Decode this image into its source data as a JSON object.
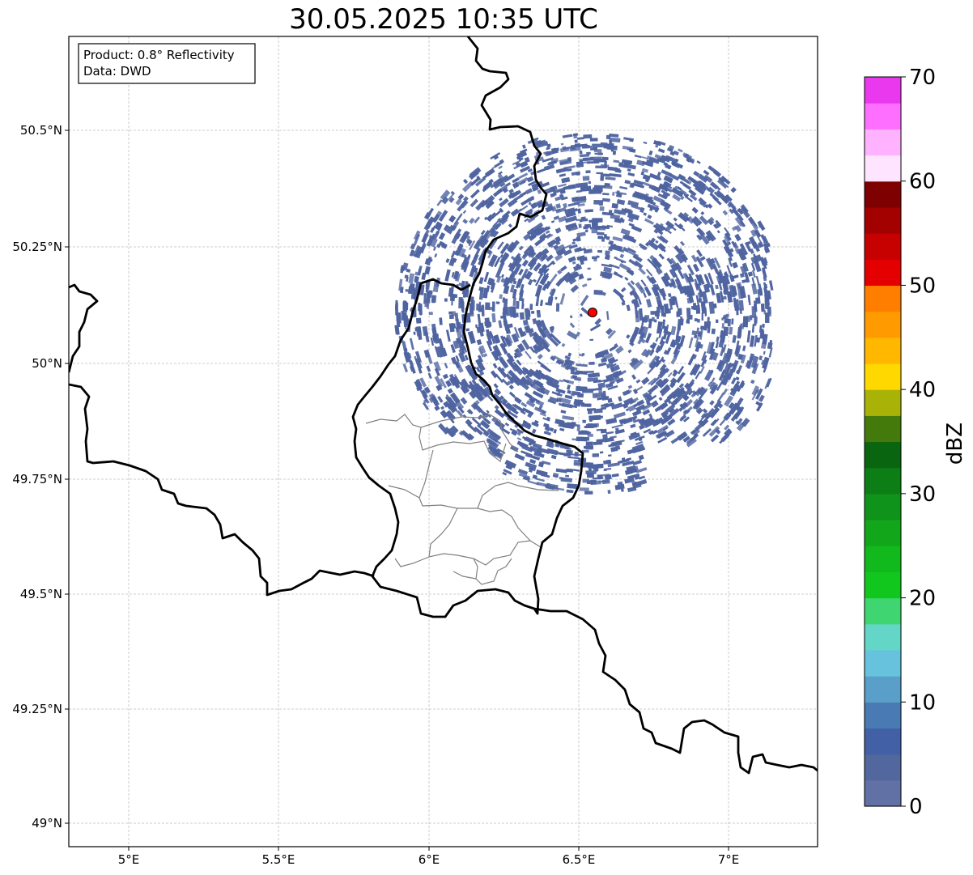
{
  "title": "30.05.2025 10:35 UTC",
  "info_box": {
    "product": "Product: 0.8° Reflectivity",
    "data_source": "Data: DWD"
  },
  "axes": {
    "lon_ticks": [
      "5°E",
      "5.5°E",
      "6°E",
      "6.5°E",
      "7°E"
    ],
    "lat_ticks": [
      "50.5°N",
      "50.25°N",
      "50°N",
      "49.75°N",
      "49.5°N",
      "49.25°N",
      "49°N"
    ]
  },
  "colorbar": {
    "label": "dBZ",
    "ticks": [
      "0",
      "10",
      "20",
      "30",
      "40",
      "50",
      "60",
      "70"
    ],
    "colors": [
      "#6170a5",
      "#53679f",
      "#4160a5",
      "#4a7ab3",
      "#5a9fc9",
      "#66c2dd",
      "#63d6c7",
      "#3fd671",
      "#11c71d",
      "#12b91c",
      "#12a71a",
      "#0f931a",
      "#0c7e15",
      "#0a6510",
      "#437a0b",
      "#a9b206",
      "#ffd800",
      "#ffb700",
      "#ff9b00",
      "#ff7e00",
      "#e40000",
      "#c70000",
      "#a30000",
      "#7e0000",
      "#ffe4ff",
      "#ffb2ff",
      "#ff6fff",
      "#e938ee"
    ]
  },
  "radar_site": {
    "color": "#ff0000"
  },
  "colors": {
    "echo": "#4f64a0",
    "border": "#000000",
    "admin_border": "#808080",
    "grid": "#bfbfbf"
  }
}
